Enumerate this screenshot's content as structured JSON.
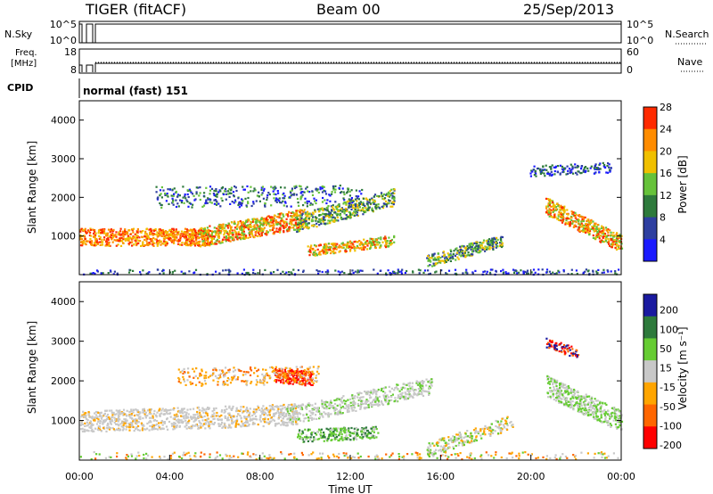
{
  "header": {
    "site": "TIGER (fitACF)",
    "beam": "Beam 00",
    "date": "25/Sep/2013"
  },
  "panel_labels": {
    "nsky": "N.Sky",
    "nsearch": "N.Search",
    "freq_line1": "Freq.",
    "freq_line2": "[MHz]",
    "nave": "Nave",
    "cpid": "CPID",
    "cpid_value": "normal (fast) 151"
  },
  "colors": {
    "power": [
      "#1a1aff",
      "#2e3fa0",
      "#2e7a3c",
      "#66c23a",
      "#f0c000",
      "#ff8c00",
      "#ff2a00"
    ],
    "velocity": [
      "#ff0000",
      "#ff6600",
      "#ffa500",
      "#c8c8c8",
      "#66cc33",
      "#2e7a3c",
      "#1a1aa0"
    ],
    "ground_scatter": "#c0c0c0"
  },
  "chart_data": [
    {
      "type": "line",
      "title": "N.Sky / N.Search",
      "ylabel_left": "N.Sky",
      "ylabel_right": "N.Search",
      "yticks_left": [
        "10^5",
        "10^0"
      ],
      "yticks_right": [
        "10^5",
        "10^0"
      ]
    },
    {
      "type": "line",
      "title": "Frequency and Nave",
      "ylabel_left": "Freq. [MHz]",
      "ylabel_right": "Nave",
      "yticks_left": [
        "18",
        "8"
      ],
      "yticks_right": [
        "60",
        "0"
      ]
    },
    {
      "type": "heatmap",
      "title": "Power",
      "xlabel": "",
      "ylabel": "Slant Range [km]",
      "yticks": [
        "1000",
        "2000",
        "3000",
        "4000"
      ],
      "colorbar_label": "Power [dB]",
      "colorbar_ticks": [
        "4",
        "8",
        "12",
        "16",
        "20",
        "24",
        "28"
      ]
    },
    {
      "type": "heatmap",
      "title": "Velocity",
      "xlabel": "Time UT",
      "ylabel": "Slant Range [km]",
      "xticks": [
        "00:00",
        "04:00",
        "08:00",
        "12:00",
        "16:00",
        "20:00",
        "00:00"
      ],
      "yticks": [
        "1000",
        "2000",
        "3000",
        "4000"
      ],
      "colorbar_label": "Velocity [m s⁻¹]",
      "colorbar_ticks": [
        "200",
        "100",
        "50",
        "15",
        "-15",
        "-50",
        "-100",
        "-200"
      ]
    }
  ]
}
